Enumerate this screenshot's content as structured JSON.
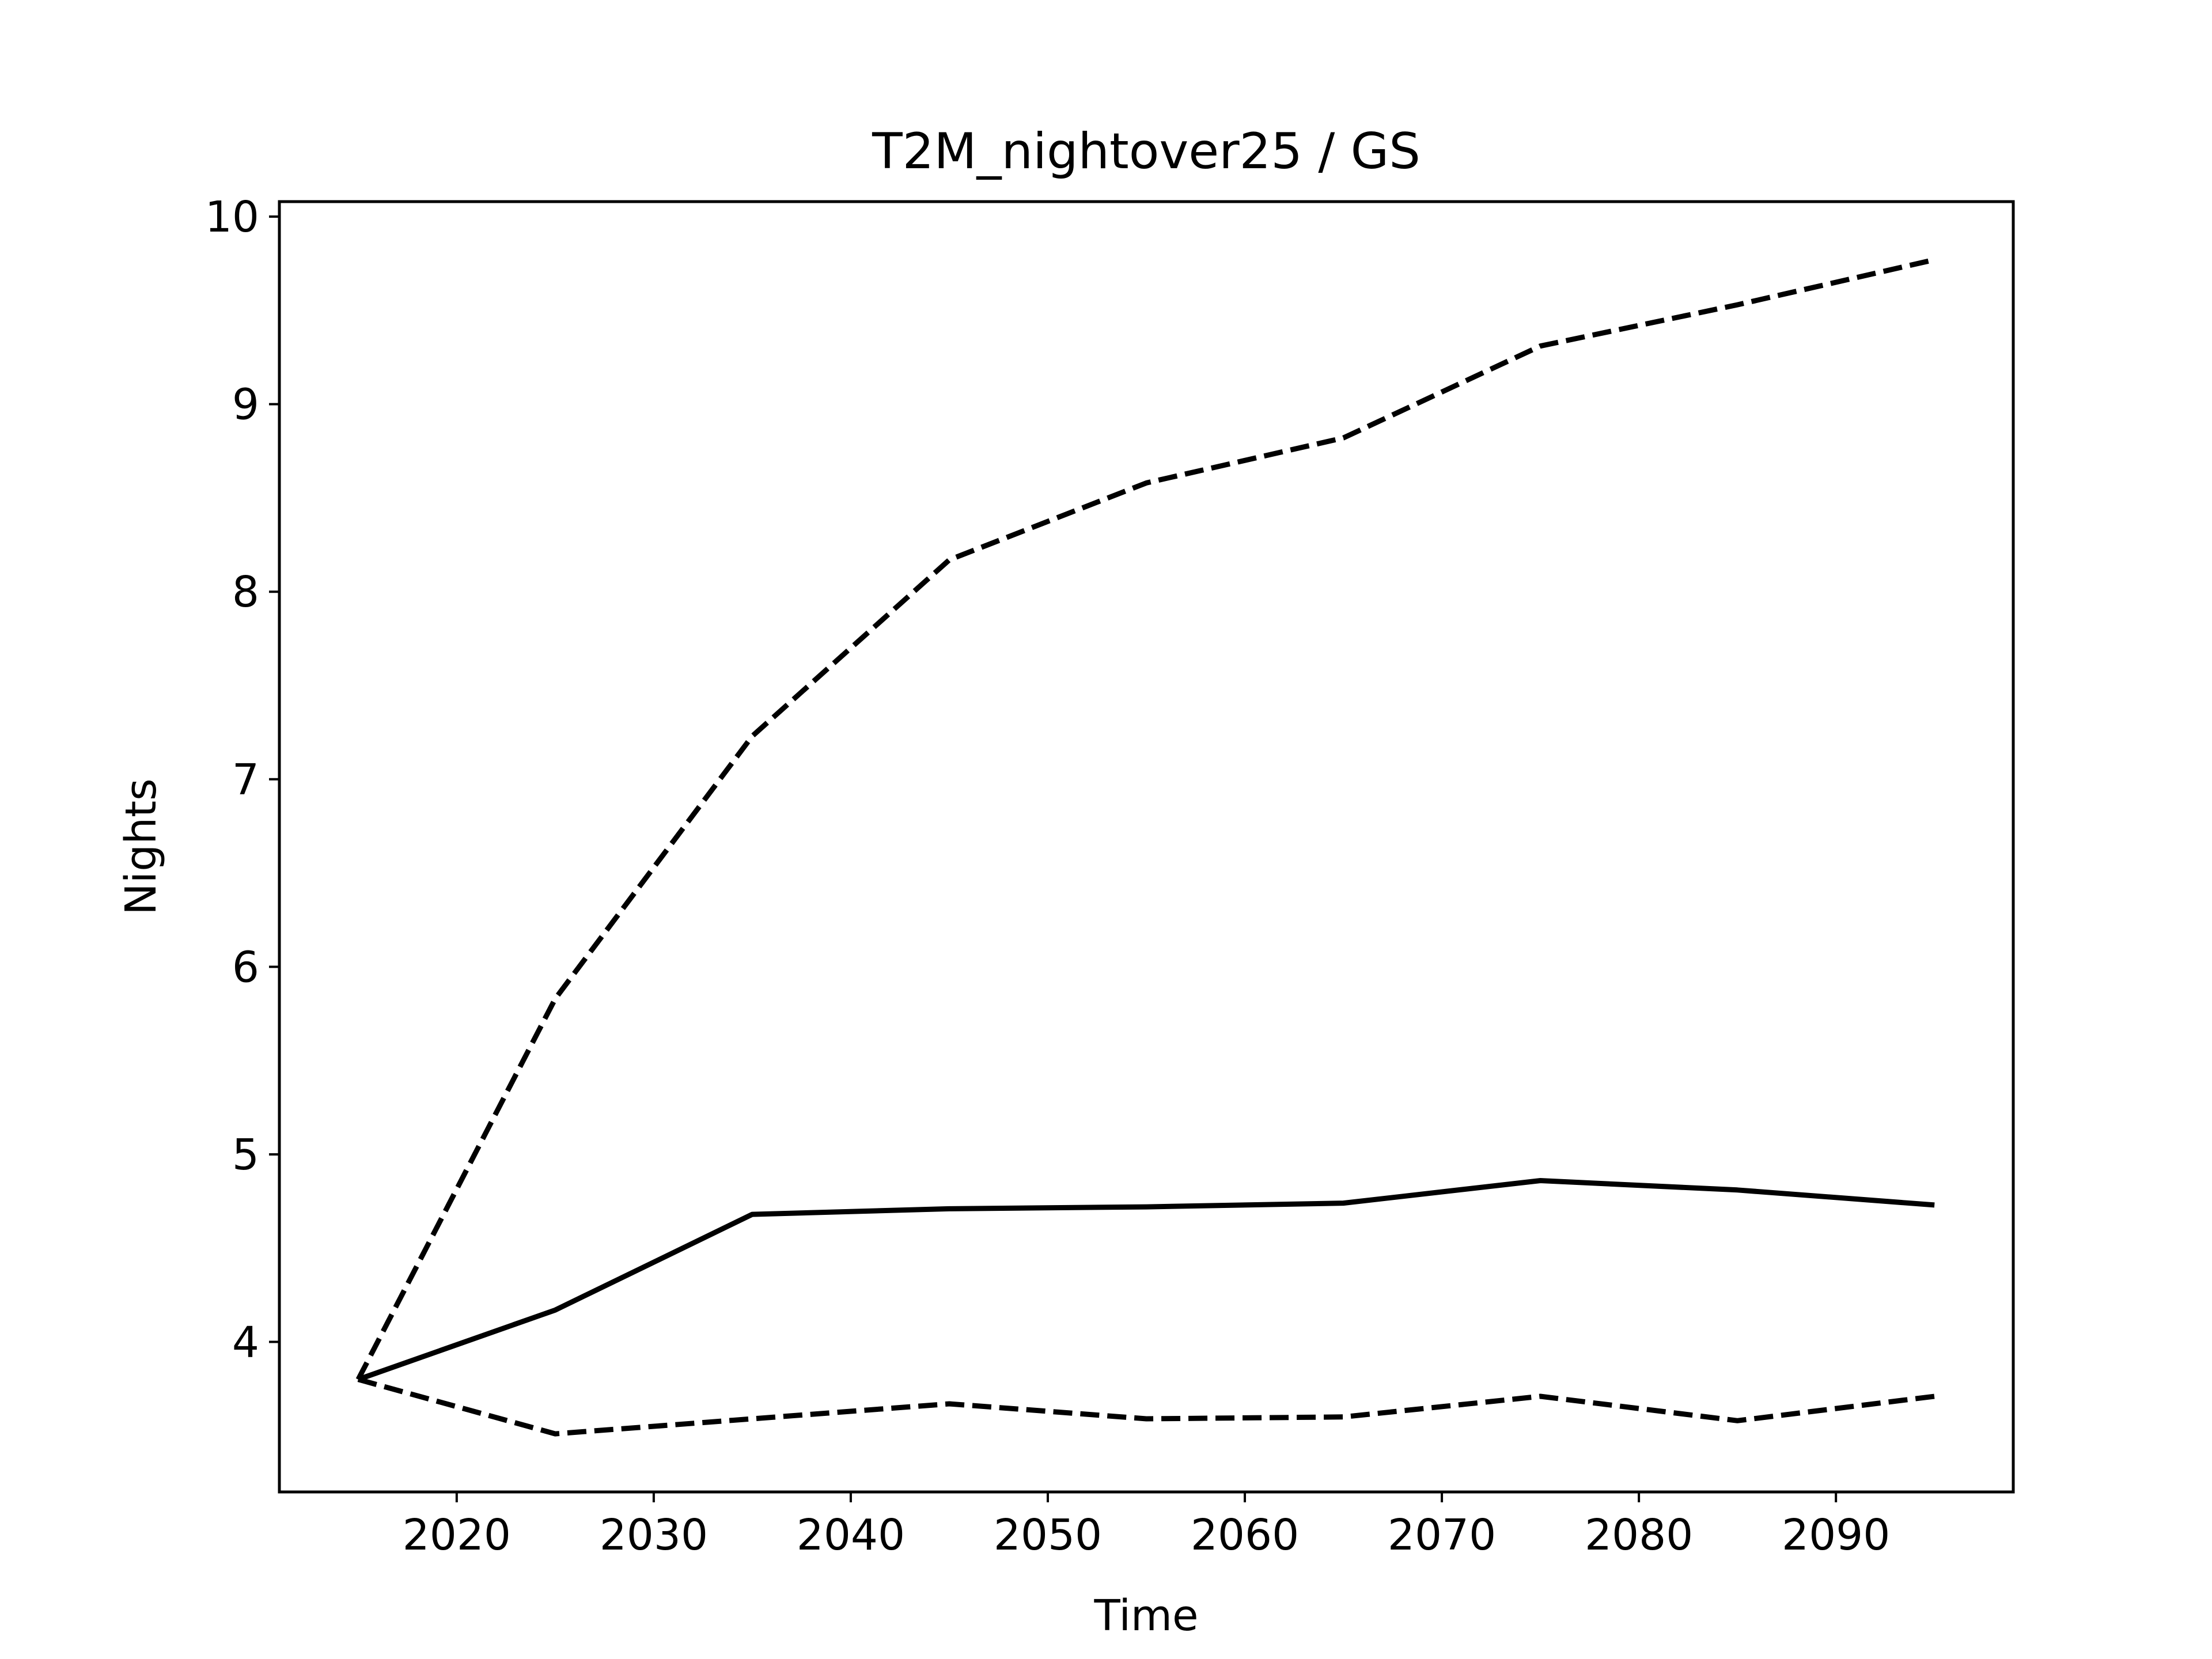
{
  "chart_data": {
    "type": "line",
    "title": "T2M_nightover25 / GS",
    "xlabel": "Time",
    "ylabel": "Nights",
    "xlim": [
      2011,
      2099
    ],
    "ylim": [
      3.2,
      10.08
    ],
    "xticks": [
      2020,
      2030,
      2040,
      2050,
      2060,
      2070,
      2080,
      2090
    ],
    "yticks": [
      4,
      5,
      6,
      7,
      8,
      9,
      10
    ],
    "grid": false,
    "legend": "none",
    "line_color": "#000000",
    "x": [
      2015,
      2025,
      2035,
      2045,
      2055,
      2065,
      2075,
      2085,
      2095
    ],
    "series": [
      {
        "style": "dashed",
        "values": [
          3.8,
          5.83,
          7.23,
          8.17,
          8.58,
          8.82,
          9.31,
          9.53,
          9.77
        ]
      },
      {
        "style": "solid",
        "values": [
          3.8,
          4.17,
          4.68,
          4.71,
          4.72,
          4.74,
          4.86,
          4.81,
          4.73
        ]
      },
      {
        "style": "dashed",
        "values": [
          3.8,
          3.51,
          3.59,
          3.67,
          3.59,
          3.6,
          3.71,
          3.58,
          3.71
        ]
      }
    ]
  }
}
